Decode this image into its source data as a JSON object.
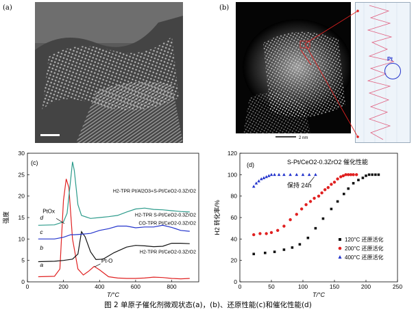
{
  "figure": {
    "caption": "图 2   单原子催化剂微观状态(a)，(b)、还原性能(c)和催化性能(d)"
  },
  "panel_a": {
    "label": "(a)"
  },
  "panel_b": {
    "label": "(b)",
    "scale_bar": "2 nm",
    "inset_annotation": "Pt"
  },
  "chart_data": [
    {
      "type": "line",
      "panel_label": "(c)",
      "xlabel": "T/°C",
      "ylabel": "强度",
      "xlim": [
        0,
        950
      ],
      "ylim": [
        0,
        30
      ],
      "xticks": [
        0,
        200,
        400,
        600,
        800
      ],
      "yticks": [
        0,
        5,
        10,
        15,
        20,
        25,
        30
      ],
      "grid": false,
      "series": [
        {
          "letter": "a",
          "name": "H2-TPR Pt/CeO2-0.3ZrO2",
          "color": "#e02020",
          "x": [
            60,
            150,
            180,
            200,
            215,
            230,
            250,
            280,
            310,
            340,
            370,
            400,
            450,
            500,
            550,
            600,
            650,
            700,
            750,
            800,
            850,
            900
          ],
          "y": [
            1.2,
            1.3,
            3,
            19,
            24,
            22,
            10,
            3,
            1.6,
            2.5,
            3.6,
            2.8,
            1.2,
            0.9,
            0.8,
            0.8,
            0.9,
            1.1,
            1.0,
            0.8,
            0.7,
            0.8
          ]
        },
        {
          "letter": "b",
          "name": "CO-TPR Pt/CeO2-0.3ZrO2",
          "color": "#111111",
          "x": [
            60,
            150,
            200,
            250,
            280,
            300,
            320,
            350,
            380,
            420,
            480,
            550,
            600,
            650,
            700,
            750,
            800,
            850,
            900
          ],
          "y": [
            4.7,
            4.8,
            5,
            5.3,
            6.5,
            11.7,
            10.5,
            7,
            5.2,
            5.3,
            6.8,
            8.1,
            8.5,
            8.4,
            8.2,
            8.3,
            9,
            9,
            8.9
          ]
        },
        {
          "letter": "c",
          "name": "H2-TPR S-Pt/CeO2-0.3ZrO2",
          "color": "#2233cc",
          "x": [
            60,
            150,
            200,
            240,
            260,
            300,
            350,
            400,
            450,
            500,
            550,
            600,
            650,
            700,
            750,
            800,
            850,
            900
          ],
          "y": [
            10,
            10,
            10.4,
            11,
            11,
            11.1,
            11.3,
            12,
            12.4,
            13,
            13,
            12.6,
            12.8,
            12.8,
            13.2,
            12.7,
            12,
            11.8
          ]
        },
        {
          "letter": "d",
          "name": "H2-TPR Pt/Al2O3+S-Pt/CeO2-0.3ZrO2",
          "color": "#2a9a8a",
          "x": [
            60,
            150,
            200,
            220,
            240,
            250,
            260,
            280,
            300,
            350,
            400,
            450,
            500,
            550,
            600,
            650,
            700,
            750,
            800,
            850,
            900
          ],
          "y": [
            13.2,
            13.3,
            14,
            16,
            24,
            28,
            26,
            18,
            15.5,
            14.8,
            15,
            15.2,
            15.5,
            16.3,
            17,
            17.2,
            16.9,
            16.8,
            16.6,
            16.4,
            16.3
          ]
        }
      ],
      "annotations": [
        {
          "text": "PtOx",
          "x": 130,
          "y": 15
        },
        {
          "text": "Pt-O",
          "x": 410,
          "y": 4.5
        }
      ]
    },
    {
      "type": "scatter",
      "panel_label": "(d)",
      "title": "S-Pt/CeO2-0.3ZrO2 催化性能",
      "xlabel": "T/°C",
      "ylabel": "H2 转化率/%",
      "xlim": [
        0,
        250
      ],
      "ylim": [
        0,
        120
      ],
      "xticks": [
        0,
        50,
        100,
        150,
        200,
        250
      ],
      "yticks": [
        0,
        20,
        40,
        60,
        80,
        100,
        120
      ],
      "grid": false,
      "legend_position": "bottom-right",
      "annotation": "保持 24h",
      "series": [
        {
          "name": "120°C 还原活化",
          "marker": "square",
          "color": "#111111",
          "x": [
            22,
            40,
            55,
            70,
            83,
            95,
            108,
            120,
            132,
            145,
            155,
            165,
            172,
            180,
            188,
            195,
            200,
            205,
            210,
            215,
            220
          ],
          "y": [
            26,
            27,
            28,
            30,
            32,
            35,
            41,
            50,
            59,
            68,
            75,
            82,
            87,
            92,
            95,
            97,
            99,
            100,
            100,
            100,
            100
          ]
        },
        {
          "name": "200°C 还原活化",
          "marker": "circle",
          "color": "#e02020",
          "x": [
            22,
            32,
            42,
            50,
            60,
            70,
            80,
            90,
            98,
            105,
            112,
            118,
            125,
            130,
            135,
            140,
            145,
            150,
            155,
            160,
            164,
            168,
            172,
            176,
            180,
            185
          ],
          "y": [
            44,
            45,
            45,
            46,
            48,
            52,
            58,
            63,
            68,
            72,
            75,
            78,
            80,
            83,
            86,
            88,
            91,
            93,
            96,
            98,
            99,
            100,
            100,
            100,
            100,
            100
          ]
        },
        {
          "name": "400°C 还原活化",
          "marker": "triangle",
          "color": "#2233cc",
          "x": [
            22,
            26,
            30,
            34,
            38,
            42,
            46,
            50,
            55,
            62,
            70,
            80,
            90,
            100,
            110,
            120
          ],
          "y": [
            89,
            92,
            94,
            96,
            97,
            98,
            99,
            100,
            100,
            100,
            100,
            100,
            100,
            100,
            100,
            100
          ]
        }
      ]
    }
  ]
}
